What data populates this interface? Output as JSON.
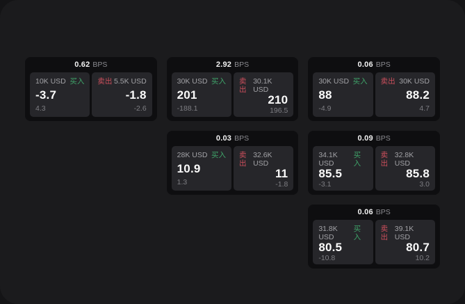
{
  "labels": {
    "bps": "BPS",
    "buy": "买入",
    "sell": "卖出"
  },
  "colors": {
    "page_bg": "#1b1b1d",
    "card_bg": "#0e0e10",
    "panel_bg": "#26262a",
    "buy_green": "#3fa369",
    "sell_red": "#cc4f5c"
  },
  "cards": [
    {
      "bps": "0.62",
      "buy": {
        "amount": "10K USD",
        "value": "-3.7",
        "delta": "4.3"
      },
      "sell": {
        "amount": "5.5K USD",
        "value": "-1.8",
        "delta": "-2.6"
      }
    },
    {
      "bps": "2.92",
      "buy": {
        "amount": "30K USD",
        "value": "201",
        "delta": "-188.1"
      },
      "sell": {
        "amount": "30.1K USD",
        "value": "210",
        "delta": "196.5"
      }
    },
    {
      "bps": "0.06",
      "buy": {
        "amount": "30K USD",
        "value": "88",
        "delta": "-4.9"
      },
      "sell": {
        "amount": "30K USD",
        "value": "88.2",
        "delta": "4.7"
      }
    },
    {
      "bps": "0.03",
      "buy": {
        "amount": "28K USD",
        "value": "10.9",
        "delta": "1.3"
      },
      "sell": {
        "amount": "32.6K USD",
        "value": "11",
        "delta": "-1.8"
      }
    },
    {
      "bps": "0.09",
      "buy": {
        "amount": "34.1K USD",
        "value": "85.5",
        "delta": "-3.1"
      },
      "sell": {
        "amount": "32.8K USD",
        "value": "85.8",
        "delta": "3.0"
      }
    },
    {
      "bps": "0.06",
      "buy": {
        "amount": "31.8K USD",
        "value": "80.5",
        "delta": "-10.8"
      },
      "sell": {
        "amount": "39.1K USD",
        "value": "80.7",
        "delta": "10.2"
      }
    }
  ]
}
